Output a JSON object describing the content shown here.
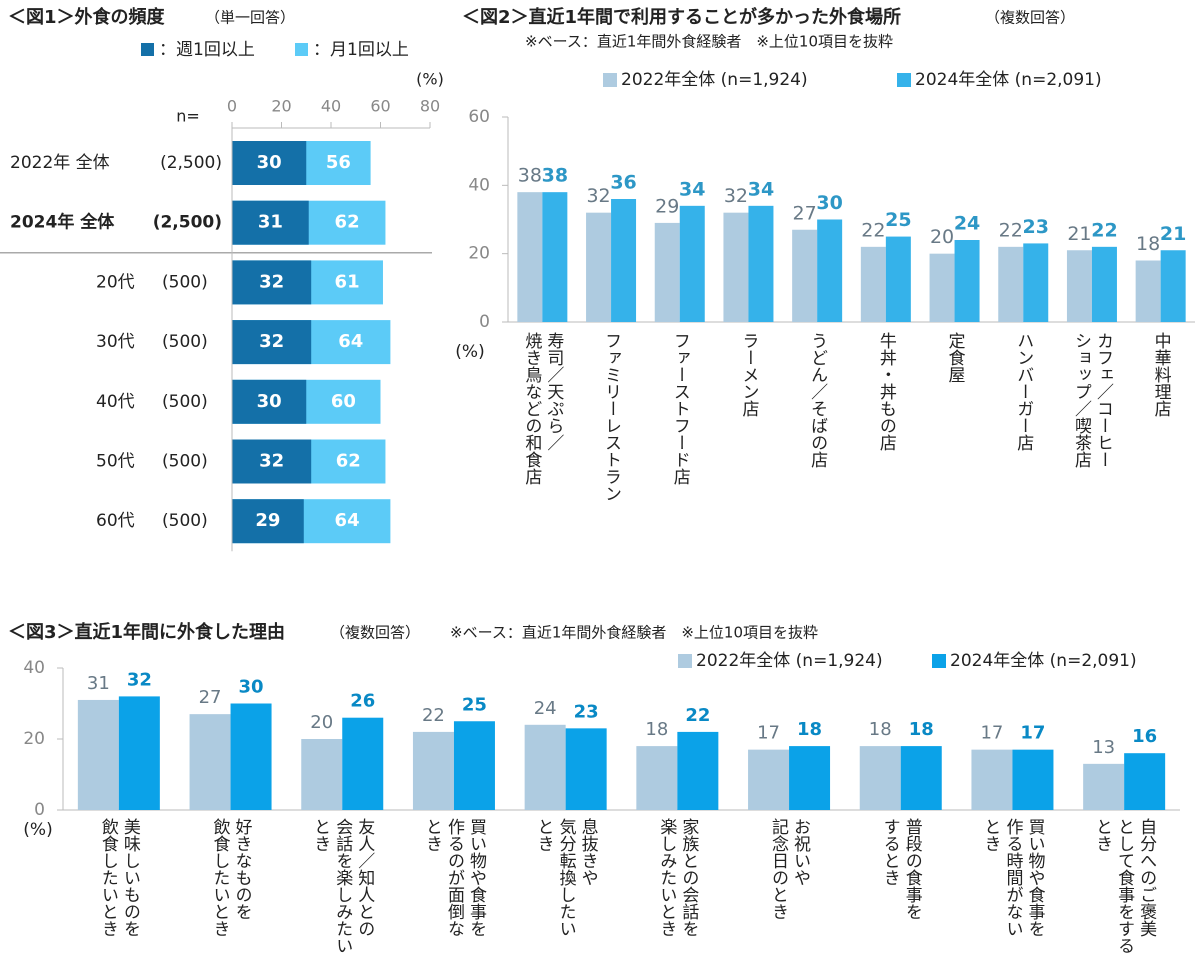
{
  "chart_data": [
    {
      "type": "hbar",
      "title": "＜図1＞外食の頻度",
      "subtitle": "（単一回答）",
      "categories": [
        "2022年 全体",
        "2024年 全体",
        "20代",
        "30代",
        "40代",
        "50代",
        "60代"
      ],
      "n_title": "n=",
      "n_values": [
        "(2,500)",
        "(2,500)",
        "(500)",
        "(500)",
        "(500)",
        "(500)",
        "(500)"
      ],
      "bold_rows": [
        1
      ],
      "unit": "(%)",
      "xlim": [
        0,
        80
      ],
      "xticks": [
        0,
        20,
        40,
        60,
        80
      ],
      "series": [
        {
          "name": "：週1回以上",
          "color": "#1470a8",
          "values": [
            30,
            31,
            32,
            32,
            30,
            32,
            29
          ]
        },
        {
          "name": "：月1回以上",
          "color": "#5ccbf7",
          "values": [
            56,
            62,
            61,
            64,
            60,
            62,
            64
          ]
        }
      ]
    },
    {
      "type": "bar",
      "title": "＜図2＞直近1年間で利用することが多かった外食場所",
      "subtitle": "（複数回答）",
      "note": "※ベース：直近1年間外食経験者　※上位10項目を抜粋",
      "unit": "(%)",
      "categories": [
        "寿司／天ぷら／\n焼き鳥などの和食店",
        "ファミリーレストラン",
        "ファーストフード店",
        "ラーメン店",
        "うどん／そばの店",
        "牛丼・丼もの店",
        "定食屋",
        "ハンバーガー店",
        "カフェ／コーヒー\nショップ／喫茶店",
        "中華料理店"
      ],
      "ylim": [
        0,
        60
      ],
      "yticks": [
        0,
        20,
        40,
        60
      ],
      "series": [
        {
          "name": "2022年全体 (n=1,924)",
          "color": "#aecbe0",
          "values": [
            38,
            32,
            29,
            32,
            27,
            22,
            20,
            22,
            21,
            18
          ]
        },
        {
          "name": "2024年全体 (n=2,091)",
          "color": "#35b2ea",
          "values": [
            38,
            36,
            34,
            34,
            30,
            25,
            24,
            23,
            22,
            21
          ]
        }
      ]
    },
    {
      "type": "bar",
      "title": "＜図3＞直近1年間に外食した理由",
      "subtitle": "（複数回答）",
      "note": "※ベース：直近1年間外食経験者　※上位10項目を抜粋",
      "unit": "(%)",
      "categories": [
        "美味しいものを\n飲食したいとき",
        "好きなものを\n飲食したいとき",
        "友人／知人との\n会話を楽しみたい\nとき",
        "買い物や食事を\n作るのが面倒な\nとき",
        "息抜きや\n気分転換したい\nとき",
        "家族との会話を\n楽しみたいとき",
        "お祝いや\n記念日のとき",
        "普段の食事を\nするとき",
        "買い物や食事を\n作る時間がない\nとき",
        "自分へのご褒美\nとして食事をする\nとき"
      ],
      "ylim": [
        0,
        40
      ],
      "yticks": [
        0,
        20,
        40
      ],
      "series": [
        {
          "name": "2022年全体 (n=1,924)",
          "color": "#aecbe0",
          "values": [
            31,
            27,
            20,
            22,
            24,
            18,
            17,
            18,
            17,
            13
          ]
        },
        {
          "name": "2024年全体 (n=2,091)",
          "color": "#0ba2e8",
          "values": [
            32,
            30,
            26,
            25,
            23,
            22,
            18,
            18,
            17,
            16
          ]
        }
      ]
    }
  ]
}
